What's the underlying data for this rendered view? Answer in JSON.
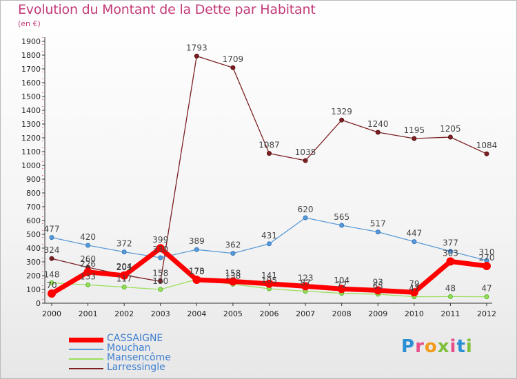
{
  "header": {
    "title": "Evolution du Montant de la Dette par Habitant",
    "subtitle": "(en €)"
  },
  "logo": {
    "text": "Proxiti",
    "letters": [
      "P",
      "r",
      "o",
      "x",
      "i",
      "t",
      "i"
    ]
  },
  "chart_data": {
    "type": "line",
    "title": "Evolution du Montant de la Dette par Habitant",
    "subtitle": "(en €)",
    "xlabel": "",
    "ylabel": "",
    "categories": [
      "2000",
      "2001",
      "2002",
      "2003",
      "2004",
      "2005",
      "2006",
      "2007",
      "2008",
      "2009",
      "2010",
      "2011",
      "2012"
    ],
    "ylim": [
      0,
      1900
    ],
    "yticks": [
      0,
      100,
      200,
      300,
      400,
      500,
      600,
      700,
      800,
      900,
      1000,
      1100,
      1200,
      1300,
      1400,
      1500,
      1600,
      1700,
      1800,
      1900
    ],
    "grid": false,
    "legend_position": "bottom-left",
    "series": [
      {
        "name": "CASSAIGNE",
        "color": "#ff0000",
        "emphasis": "thick",
        "values": [
          70,
          226,
          201,
          399,
          170,
          158,
          141,
          123,
          104,
          93,
          79,
          303,
          270
        ]
      },
      {
        "name": "Mouchan",
        "color": "#5b9bd5",
        "values": [
          477,
          420,
          372,
          330,
          389,
          362,
          431,
          620,
          565,
          517,
          447,
          377,
          310
        ]
      },
      {
        "name": "Mansencôme",
        "color": "#9adf5b",
        "values": [
          148,
          133,
          117,
          100,
          173,
          138,
          105,
          87,
          72,
          65,
          47,
          48,
          47
        ]
      },
      {
        "name": "Larressingle",
        "color": "#7b1f22",
        "values": [
          324,
          260,
          204,
          158,
          1793,
          1709,
          1087,
          1035,
          1329,
          1240,
          1195,
          1205,
          1084
        ]
      }
    ]
  }
}
